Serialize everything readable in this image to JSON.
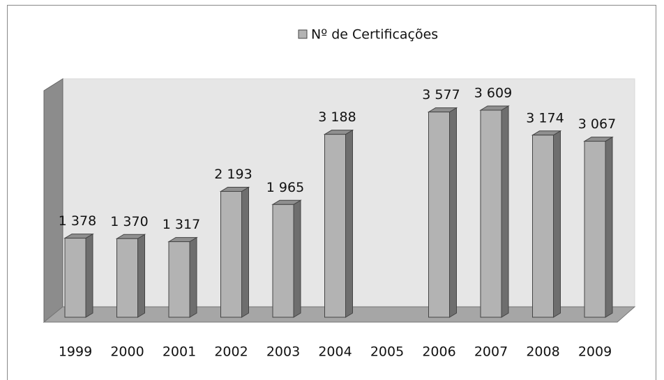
{
  "chart_data": {
    "type": "bar3d",
    "legend": "Nº de Certificações",
    "categories": [
      "1999",
      "2000",
      "2001",
      "2002",
      "2003",
      "2004",
      "2005",
      "2006",
      "2007",
      "2008",
      "2009"
    ],
    "values": [
      1378,
      1370,
      1317,
      2193,
      1965,
      3188,
      null,
      3577,
      3609,
      3174,
      3067
    ],
    "value_labels": [
      "1 378",
      "1 370",
      "1 317",
      "2 193",
      "1 965",
      "3 188",
      null,
      "3 577",
      "3 609",
      "3 174",
      "3 067"
    ],
    "color": "#b3b3b3"
  }
}
